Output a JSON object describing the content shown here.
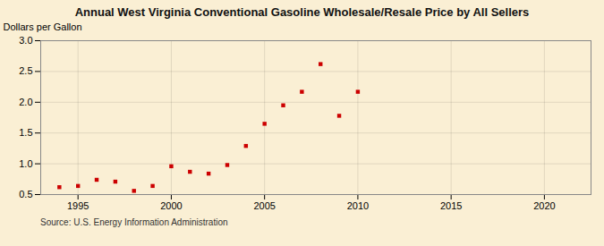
{
  "chart_data": {
    "type": "scatter",
    "title": "Annual West Virginia Conventional Gasoline Wholesale/Resale Price by All Sellers",
    "ylabel": "Dollars per Gallon",
    "annotations": [
      "Source: U.S. Energy Information Administration"
    ],
    "x": [
      1994,
      1995,
      1996,
      1997,
      1998,
      1999,
      2000,
      2001,
      2002,
      2003,
      2004,
      2005,
      2006,
      2007,
      2008,
      2009,
      2010
    ],
    "values": [
      0.62,
      0.64,
      0.74,
      0.71,
      0.56,
      0.64,
      0.96,
      0.87,
      0.84,
      0.98,
      1.29,
      1.65,
      1.95,
      2.17,
      2.62,
      1.78,
      2.17
    ],
    "color": "#cc0000",
    "marker": "square",
    "xlim": [
      1993.0,
      2022.5
    ],
    "xticks": [
      1995,
      2000,
      2005,
      2010,
      2015,
      2020
    ],
    "ylim": [
      0.5,
      3.0
    ],
    "yticks": [
      0.5,
      {
        "value": 1.0,
        "label": "1.0"
      },
      1.5,
      {
        "value": 2.0,
        "label": "2.0"
      },
      2.5,
      {
        "value": 3.0,
        "label": "3.0"
      }
    ],
    "grid": true
  }
}
